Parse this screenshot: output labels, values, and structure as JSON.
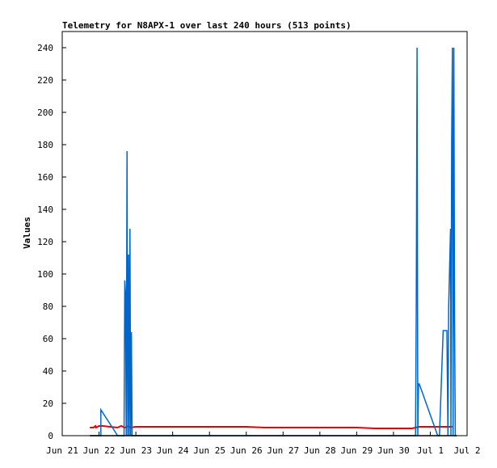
{
  "chart_data": {
    "type": "line",
    "title": "Telemetry for N8APX-1 over last 240 hours (513 points)",
    "xlabel": "",
    "ylabel": "Values",
    "xlim": [
      "Jun 21",
      "Jul 2"
    ],
    "ylim": [
      0,
      250
    ],
    "x_ticks": [
      "Jun 21",
      "Jun 22",
      "Jun 23",
      "Jun 24",
      "Jun 25",
      "Jun 26",
      "Jun 27",
      "Jun 28",
      "Jun 29",
      "Jun 30",
      "Jul 1",
      "Jul 2"
    ],
    "y_ticks": [
      0,
      20,
      40,
      60,
      80,
      100,
      120,
      140,
      160,
      180,
      200,
      220,
      240
    ],
    "grid": false,
    "legend": "none",
    "colors": {
      "series_red": "#ee0000",
      "series_blue": "#0066cc",
      "series_black": "#000000",
      "axis": "#000000"
    },
    "series": [
      {
        "color": "#ee0000",
        "x_days": [
          0.75,
          0.85,
          0.9,
          0.92,
          1.0,
          1.1,
          1.3,
          1.5,
          1.6,
          1.7,
          1.8,
          1.85,
          2.0,
          2.5,
          3.0,
          3.5,
          4.0,
          4.5,
          5.0,
          5.5,
          6.0,
          6.5,
          7.0,
          7.5,
          8.0,
          8.5,
          9.0,
          9.5,
          9.6,
          9.7,
          9.8,
          10.0,
          10.5,
          10.6
        ],
        "values": [
          5,
          5,
          6,
          5,
          6,
          6,
          5.5,
          5,
          6,
          5,
          6,
          5,
          5.5,
          5.5,
          5.5,
          5.5,
          5.5,
          5.5,
          5.5,
          5,
          5,
          5,
          5,
          5,
          5,
          4.5,
          4.5,
          4.5,
          5,
          5.5,
          5.5,
          5.5,
          5.5,
          5.5
        ]
      },
      {
        "color": "#0066cc",
        "x_days": [
          0.75,
          1.0,
          1.05,
          1.05,
          1.45,
          1.5,
          1.68,
          1.7,
          1.72,
          1.74,
          1.76,
          1.78,
          1.8,
          1.82,
          1.84,
          1.86,
          1.88,
          1.9,
          1.92,
          1.94,
          9.5,
          9.6,
          9.62,
          9.64,
          9.66,
          9.68,
          9.7,
          10.2,
          10.25,
          10.35,
          10.45,
          10.48,
          10.5,
          10.55,
          10.56,
          10.58,
          10.6,
          10.62,
          10.64,
          10.66,
          10.68,
          10.7,
          10.72
        ],
        "values": [
          0,
          0,
          0,
          16,
          2,
          0,
          0,
          96,
          88,
          0,
          176,
          0,
          112,
          0,
          128,
          0,
          64,
          0,
          0,
          0,
          0,
          0,
          80,
          240,
          0,
          32,
          32,
          0,
          0,
          65,
          65,
          0,
          80,
          128,
          0,
          182,
          240,
          0,
          240,
          72,
          0,
          0,
          0
        ]
      },
      {
        "color": "#000000",
        "x_days": [
          0.75,
          10.72
        ],
        "values": [
          0,
          0
        ]
      }
    ]
  }
}
